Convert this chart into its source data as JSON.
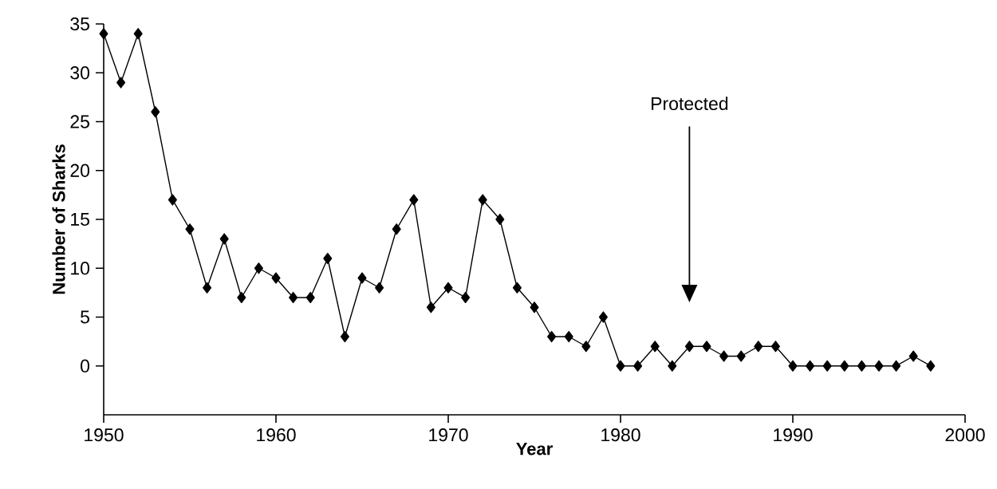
{
  "chart_data": {
    "type": "line",
    "xlabel": "Year",
    "ylabel": "Number of Sharks",
    "x": [
      1950,
      1951,
      1952,
      1953,
      1954,
      1955,
      1956,
      1957,
      1958,
      1959,
      1960,
      1961,
      1962,
      1963,
      1964,
      1965,
      1966,
      1967,
      1968,
      1969,
      1970,
      1971,
      1972,
      1973,
      1974,
      1975,
      1976,
      1977,
      1978,
      1979,
      1980,
      1981,
      1982,
      1983,
      1984,
      1985,
      1986,
      1987,
      1988,
      1989,
      1990,
      1991,
      1992,
      1993,
      1994,
      1995,
      1996,
      1997,
      1998
    ],
    "series": [
      {
        "color": "#000000",
        "values": [
          34,
          29,
          34,
          26,
          17,
          14,
          8,
          13,
          7,
          10,
          9,
          7,
          7,
          11,
          3,
          9,
          8,
          14,
          17,
          6,
          8,
          7,
          17,
          15,
          8,
          6,
          3,
          3,
          2,
          5,
          0,
          0,
          2,
          0,
          2,
          2,
          1,
          1,
          2,
          2,
          0,
          0,
          0,
          0,
          0,
          0,
          0,
          1,
          0
        ]
      }
    ],
    "xlim": [
      1950,
      2000
    ],
    "xticks": [
      1950,
      1960,
      1970,
      1980,
      1990,
      2000
    ],
    "ylim": [
      -5,
      35
    ],
    "yticks": [
      0,
      5,
      10,
      15,
      20,
      25,
      30,
      35
    ],
    "marker": "diamond",
    "line_style": "solid",
    "annotations": [
      "Protected"
    ]
  }
}
